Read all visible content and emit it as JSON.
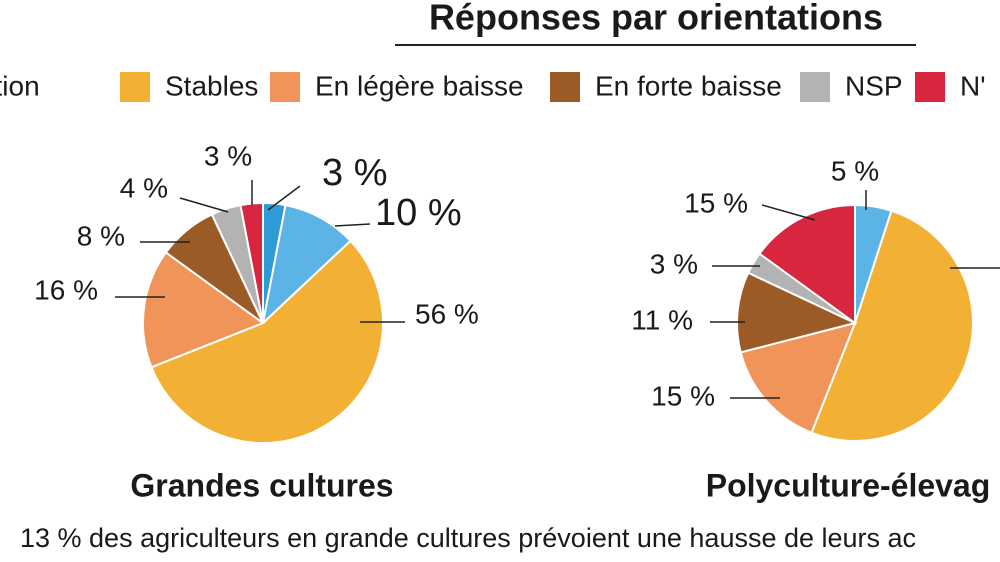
{
  "title": "Réponses par orientations",
  "legend": [
    {
      "label": "entation"
    },
    {
      "label": "Stables",
      "color": "#f2b134"
    },
    {
      "label": "En légère baisse",
      "color": "#f0945a"
    },
    {
      "label": "En forte baisse",
      "color": "#9a5b27"
    },
    {
      "label": "NSP",
      "color": "#b3b3b3"
    },
    {
      "label": "N'",
      "color": "#d7263d"
    }
  ],
  "note": "13 % des agriculteurs en grande cultures prévoient une hausse de leurs ac",
  "chart_data": [
    {
      "type": "pie",
      "title": "Grandes cultures",
      "values": [
        3,
        10,
        56,
        16,
        8,
        4,
        3
      ],
      "value_labels": [
        "3 %",
        "10 %",
        "56 %",
        "16 %",
        "8 %",
        "4 %",
        "3 %"
      ],
      "colors": [
        "#2e9ad6",
        "#5bb4e5",
        "#f2b134",
        "#f0945a",
        "#9a5b27",
        "#b3b3b3",
        "#d7263d"
      ]
    },
    {
      "type": "pie",
      "title": "Polyculture-élevag",
      "values": [
        5,
        51,
        15,
        11,
        3,
        15
      ],
      "value_labels": [
        "5 %",
        null,
        "15 %",
        "11 %",
        "3 %",
        "15 %"
      ],
      "colors": [
        "#5bb4e5",
        "#f2b134",
        "#f0945a",
        "#9a5b27",
        "#b3b3b3",
        "#d7263d"
      ]
    }
  ]
}
